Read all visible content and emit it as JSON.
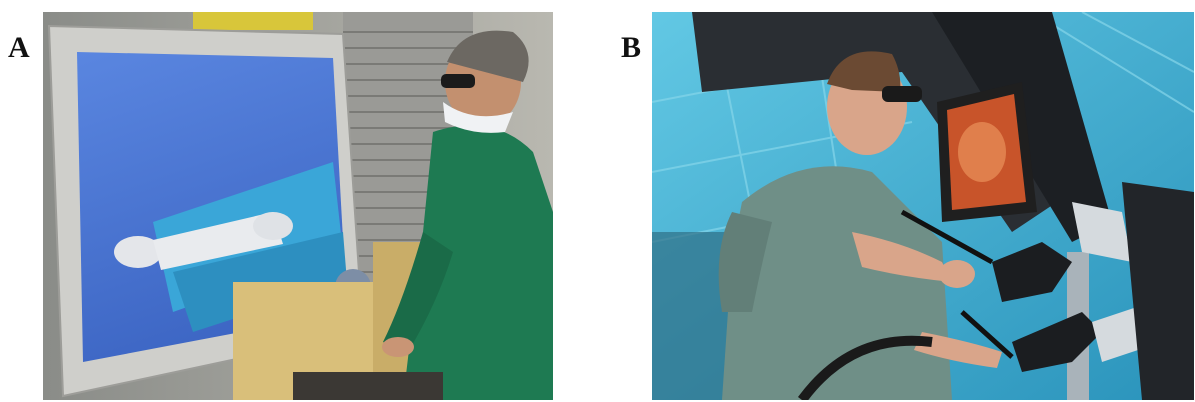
{
  "panels": [
    {
      "label": "A",
      "scene": "surgeon-at-simulator-monitor",
      "colors": {
        "screen": "#4a78d6",
        "gown": "#1e7a52",
        "patient": "#3aa6d8",
        "frame": "#c8c8c4"
      }
    },
    {
      "label": "B",
      "scene": "surgeon-at-robotic-console",
      "colors": {
        "background": "#3fb2d4",
        "scrubs": "#6f8f87",
        "console": "#2a2e33",
        "monitor_tissue": "#c8542a"
      }
    }
  ]
}
